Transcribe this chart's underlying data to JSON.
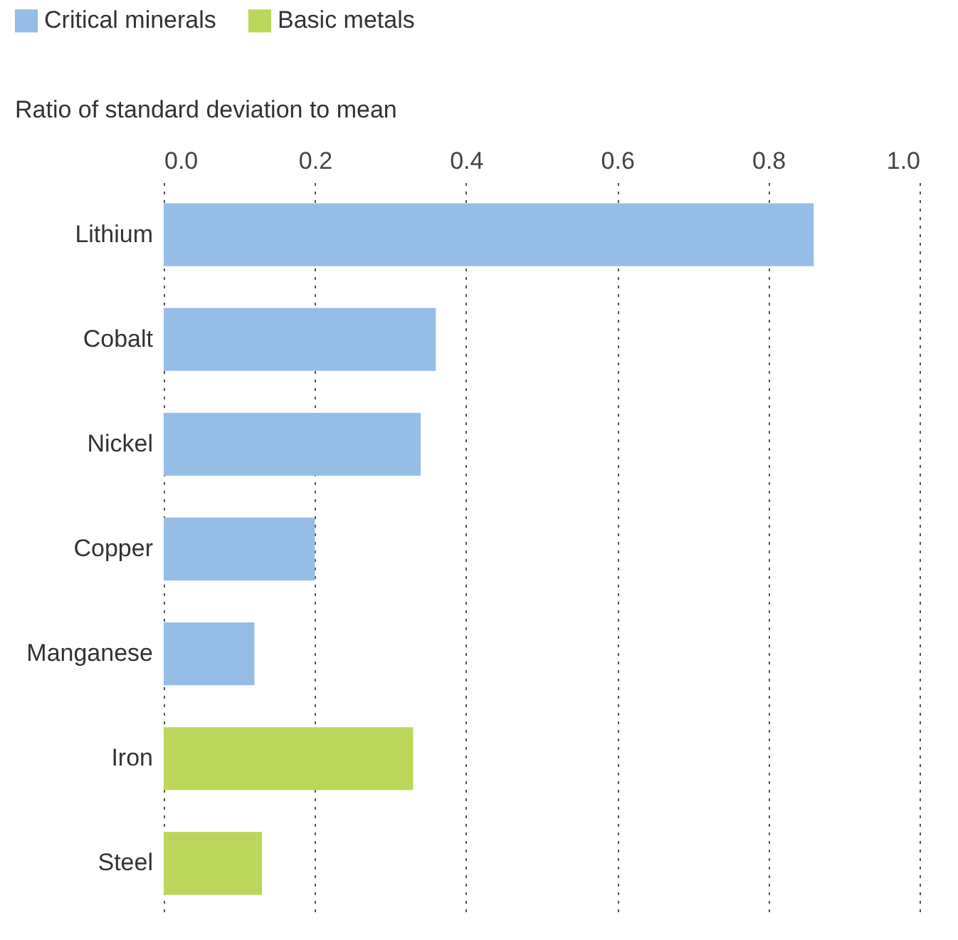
{
  "chart_data": {
    "type": "bar",
    "orientation": "horizontal",
    "xlabel": "Ratio of standard deviation to mean",
    "categories": [
      "Lithium",
      "Cobalt",
      "Nickel",
      "Copper",
      "Manganese",
      "Iron",
      "Steel"
    ],
    "series": [
      {
        "name": "Critical minerals",
        "color": "#95bde6",
        "values": [
          0.86,
          0.36,
          0.34,
          0.2,
          0.12,
          null,
          null
        ]
      },
      {
        "name": "Basic metals",
        "color": "#bcd65c",
        "values": [
          null,
          null,
          null,
          null,
          null,
          0.33,
          0.13
        ]
      }
    ],
    "xlim": [
      0,
      1
    ],
    "xticks": [
      {
        "value": 0,
        "label": "0.0"
      },
      {
        "value": 0.2,
        "label": "0.2"
      },
      {
        "value": 0.4,
        "label": "0.4"
      },
      {
        "value": 0.6,
        "label": "0.6"
      },
      {
        "value": 0.8,
        "label": "0.8"
      },
      {
        "value": 1,
        "label": "1.0"
      }
    ],
    "grid": "x",
    "legend": "top left"
  }
}
